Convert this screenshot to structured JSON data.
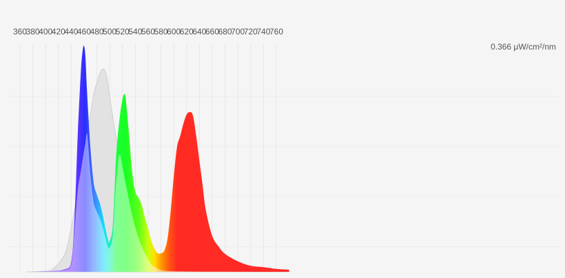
{
  "chart_data": {
    "type": "area",
    "title": "",
    "xlabel": "",
    "ylabel": "",
    "y_max_label": "0.366 μW/cm²/nm",
    "xlim": [
      350,
      780
    ],
    "ylim": [
      0,
      0.366
    ],
    "grid": true,
    "x_ticks": [
      "360",
      "380",
      "400",
      "420",
      "440",
      "460",
      "480",
      "500",
      "520",
      "540",
      "560",
      "580",
      "600",
      "620",
      "640",
      "660",
      "680",
      "700",
      "720",
      "740",
      "760"
    ],
    "series": [
      {
        "role": "rgb-spectrum",
        "x": [
          370,
          390,
          410,
          430,
          440,
          445,
          450,
          455,
          458,
          460,
          462,
          465,
          470,
          475,
          480,
          485,
          490,
          495,
          498,
          500,
          505,
          510,
          515,
          520,
          523,
          525,
          530,
          535,
          540,
          545,
          550,
          555,
          560,
          565,
          570,
          575,
          580,
          585,
          590,
          595,
          600,
          605,
          610,
          615,
          620,
          625,
          630,
          635,
          640,
          645,
          650,
          660,
          670,
          680,
          700,
          720,
          740,
          760,
          780
        ],
        "y": [
          0,
          0.0003,
          0.0011,
          0.004,
          0.016,
          0.083,
          0.22,
          0.325,
          0.36,
          0.366,
          0.35,
          0.285,
          0.2,
          0.145,
          0.125,
          0.11,
          0.088,
          0.062,
          0.05,
          0.05,
          0.077,
          0.186,
          0.245,
          0.28,
          0.288,
          0.28,
          0.225,
          0.162,
          0.13,
          0.12,
          0.108,
          0.088,
          0.07,
          0.05,
          0.037,
          0.03,
          0.03,
          0.034,
          0.052,
          0.097,
          0.155,
          0.202,
          0.22,
          0.24,
          0.255,
          0.259,
          0.253,
          0.22,
          0.18,
          0.14,
          0.1,
          0.058,
          0.041,
          0.029,
          0.017,
          0.0098,
          0.0076,
          0.0048,
          0.0035
        ]
      },
      {
        "role": "white-reference",
        "x": [
          370,
          390,
          410,
          430,
          440,
          445,
          450,
          460,
          465,
          470,
          475,
          480,
          485,
          490,
          495,
          500,
          505,
          510,
          515,
          520,
          525,
          530,
          535,
          540,
          545,
          550,
          555,
          560,
          565,
          570,
          575,
          580,
          585,
          590,
          600,
          620,
          640,
          660,
          680,
          700,
          720,
          740,
          760,
          780
        ],
        "y": [
          0,
          0.0007,
          0.004,
          0.029,
          0.072,
          0.1,
          0.131,
          0.197,
          0.226,
          0.255,
          0.288,
          0.307,
          0.322,
          0.329,
          0.318,
          0.284,
          0.25,
          0.218,
          0.19,
          0.17,
          0.143,
          0.117,
          0.092,
          0.072,
          0.055,
          0.041,
          0.03,
          0.02,
          0.012,
          0.008,
          0.005,
          0.003,
          0.002,
          0.0015,
          0.001,
          0.0006,
          0.0004,
          0.0003,
          0.0002,
          0.0001,
          0,
          0,
          0,
          0
        ]
      }
    ]
  }
}
